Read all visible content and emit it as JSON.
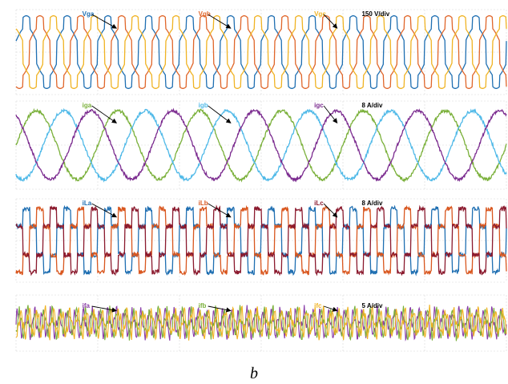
{
  "chart_data": [
    {
      "type": "line",
      "scale": "150 V/div",
      "series": [
        {
          "name": "Vga",
          "color": "#1f6fb2"
        },
        {
          "name": "Vgb",
          "color": "#e0662a"
        },
        {
          "name": "Vgc",
          "color": "#f0b323"
        }
      ],
      "waveform": "six-step stepped voltage, 3 phases 120 deg apart",
      "cycles": 12,
      "amplitude_div": 1.35,
      "grid": true
    },
    {
      "type": "line",
      "scale": "8 A/div",
      "series": [
        {
          "name": "iga",
          "color": "#7ab03a"
        },
        {
          "name": "igb",
          "color": "#4fb9e8"
        },
        {
          "name": "igc",
          "color": "#7b2b8f"
        }
      ],
      "waveform": "sinusoidal currents, 3 phases 120 deg apart",
      "cycles": 6,
      "amplitude_div": 1.35,
      "grid": true
    },
    {
      "type": "line",
      "scale": "8 A/div",
      "series": [
        {
          "name": "iLa",
          "color": "#1f6fb2"
        },
        {
          "name": "iLb",
          "color": "#d9571f"
        },
        {
          "name": "iLc",
          "color": "#8b1a2e"
        }
      ],
      "waveform": "quasi-square load currents with ripple, 3 phases 120 deg apart",
      "cycles": 12,
      "amplitude_div": 0.9,
      "grid": true
    },
    {
      "type": "line",
      "scale": "5 A/div",
      "series": [
        {
          "name": "ifa",
          "color": "#8a3ea8"
        },
        {
          "name": "ifb",
          "color": "#7ab03a"
        },
        {
          "name": "ifc",
          "color": "#f0b323"
        }
      ],
      "waveform": "high-frequency filter currents",
      "cycles": 60,
      "amplitude_div": 0.4,
      "grid": true
    }
  ],
  "caption": "b"
}
